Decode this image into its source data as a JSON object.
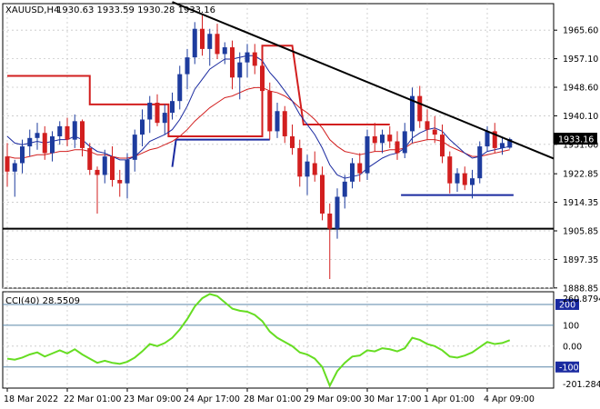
{
  "colors": {
    "background": "#ffffff",
    "grid": "#c8c8c8",
    "axis": "#000000",
    "bull_candle": "#1e3c9e",
    "bear_candle": "#d21f1f",
    "wick": "#000000",
    "ema_fast": "#1a2aa0",
    "ema_slow": "#d21f1f",
    "resistance_trendline": "#000000",
    "support_level": "#000000",
    "stop_line": "#d21f1f",
    "blue_level": "#1a2aa0",
    "cci": "#66dd22",
    "cci_level_band": "#5a86a8",
    "price_tag_bg": "#000000",
    "price_tag_fg": "#ffffff",
    "cci_level_tag_bg": "#1a2aa0"
  },
  "header": {
    "symbol_label": "XAUUSD,H4",
    "ohlc_label": "1930.63 1933.59 1930.28 1933.16"
  },
  "current_price_label": "1933.16",
  "cci": {
    "label": "CCI(40) 28.5509",
    "top_label": "260.8794",
    "bottom_label": "-201.2846",
    "level_labels": [
      "200",
      "100",
      "0.00",
      "-100"
    ]
  },
  "chart_data": [
    {
      "type": "candlestick",
      "title": "XAUUSD,H4",
      "ylim": [
        1888.8,
        1973.5
      ],
      "y_ticks": [
        "1965.60",
        "1957.10",
        "1948.60",
        "1940.10",
        "1931.60",
        "1922.85",
        "1914.35",
        "1905.85",
        "1897.35",
        "1888.85"
      ],
      "x_ticks": [
        "18 Mar 2022",
        "22 Mar 01:00",
        "23 Mar 09:00",
        "24 Apr 17:00",
        "28 Mar 01:00",
        "29 Mar 09:00",
        "30 Mar 17:00",
        "1 Apr 01:00",
        "4 Apr 09:00"
      ],
      "candles": [
        [
          1928.0,
          1932.0,
          1919.0,
          1923.5
        ],
        [
          1923.5,
          1927.0,
          1916.0,
          1926.0
        ],
        [
          1926.0,
          1933.0,
          1923.0,
          1931.0
        ],
        [
          1931.0,
          1936.0,
          1928.0,
          1933.5
        ],
        [
          1933.5,
          1938.0,
          1930.0,
          1935.0
        ],
        [
          1935.0,
          1937.0,
          1927.0,
          1929.0
        ],
        [
          1929.0,
          1935.5,
          1926.5,
          1934.0
        ],
        [
          1934.0,
          1938.5,
          1931.5,
          1937.0
        ],
        [
          1937.0,
          1939.5,
          1931.0,
          1933.0
        ],
        [
          1933.0,
          1940.5,
          1930.5,
          1938.5
        ],
        [
          1938.5,
          1939.0,
          1928.0,
          1930.5
        ],
        [
          1930.5,
          1932.0,
          1922.5,
          1924.0
        ],
        [
          1924.0,
          1925.0,
          1911.0,
          1922.5
        ],
        [
          1922.5,
          1930.0,
          1920.0,
          1928.0
        ],
        [
          1928.0,
          1931.0,
          1919.0,
          1921.0
        ],
        [
          1921.0,
          1924.0,
          1916.0,
          1920.0
        ],
        [
          1920.0,
          1929.0,
          1915.5,
          1927.0
        ],
        [
          1927.0,
          1936.0,
          1923.5,
          1934.5
        ],
        [
          1934.5,
          1942.0,
          1931.0,
          1939.0
        ],
        [
          1939.0,
          1946.0,
          1935.0,
          1944.0
        ],
        [
          1944.0,
          1946.5,
          1937.0,
          1938.0
        ],
        [
          1938.0,
          1943.5,
          1934.5,
          1941.0
        ],
        [
          1941.0,
          1947.0,
          1939.0,
          1944.5
        ],
        [
          1944.5,
          1955.0,
          1942.0,
          1952.5
        ],
        [
          1952.5,
          1960.0,
          1948.0,
          1957.5
        ],
        [
          1957.5,
          1968.0,
          1955.5,
          1966.0
        ],
        [
          1966.0,
          1970.0,
          1958.0,
          1960.0
        ],
        [
          1960.0,
          1966.0,
          1955.0,
          1964.5
        ],
        [
          1964.5,
          1967.5,
          1957.0,
          1958.5
        ],
        [
          1958.5,
          1962.0,
          1955.5,
          1960.5
        ],
        [
          1960.5,
          1962.5,
          1948.0,
          1951.5
        ],
        [
          1951.5,
          1959.0,
          1945.0,
          1956.0
        ],
        [
          1956.0,
          1961.5,
          1951.5,
          1959.0
        ],
        [
          1959.0,
          1961.5,
          1952.5,
          1955.0
        ],
        [
          1955.0,
          1957.0,
          1945.5,
          1947.5
        ],
        [
          1947.5,
          1950.0,
          1933.0,
          1935.5
        ],
        [
          1935.5,
          1944.0,
          1933.5,
          1941.5
        ],
        [
          1941.5,
          1943.0,
          1932.0,
          1934.0
        ],
        [
          1934.0,
          1937.5,
          1928.5,
          1930.5
        ],
        [
          1930.5,
          1933.0,
          1919.0,
          1922.0
        ],
        [
          1922.0,
          1928.5,
          1916.5,
          1926.5
        ],
        [
          1926.0,
          1929.5,
          1920.5,
          1922.5
        ],
        [
          1922.5,
          1925.0,
          1909.0,
          1911.0
        ],
        [
          1911.0,
          1914.0,
          1891.5,
          1906.5
        ],
        [
          1906.5,
          1918.5,
          1903.5,
          1916.0
        ],
        [
          1916.0,
          1922.5,
          1912.5,
          1920.5
        ],
        [
          1920.5,
          1927.5,
          1918.5,
          1926.0
        ],
        [
          1926.0,
          1929.0,
          1920.5,
          1923.0
        ],
        [
          1923.0,
          1936.0,
          1921.0,
          1934.0
        ],
        [
          1934.0,
          1938.0,
          1929.5,
          1932.0
        ],
        [
          1932.0,
          1936.0,
          1929.0,
          1934.5
        ],
        [
          1934.5,
          1937.0,
          1930.5,
          1932.5
        ],
        [
          1932.5,
          1935.5,
          1927.0,
          1929.0
        ],
        [
          1929.0,
          1938.0,
          1927.5,
          1935.5
        ],
        [
          1935.5,
          1948.5,
          1932.0,
          1946.0
        ],
        [
          1946.0,
          1949.0,
          1936.5,
          1938.5
        ],
        [
          1938.5,
          1942.0,
          1933.0,
          1936.0
        ],
        [
          1936.0,
          1940.0,
          1932.0,
          1934.5
        ],
        [
          1934.5,
          1937.5,
          1926.0,
          1928.0
        ],
        [
          1928.0,
          1929.5,
          1917.0,
          1920.0
        ],
        [
          1920.0,
          1924.5,
          1917.5,
          1923.0
        ],
        [
          1923.0,
          1925.0,
          1918.0,
          1919.5
        ],
        [
          1919.5,
          1924.0,
          1915.5,
          1921.5
        ],
        [
          1921.5,
          1932.5,
          1920.0,
          1931.0
        ],
        [
          1931.0,
          1937.0,
          1929.5,
          1935.5
        ],
        [
          1935.5,
          1938.0,
          1929.0,
          1930.5
        ],
        [
          1930.5,
          1933.5,
          1928.5,
          1932.0
        ],
        [
          1930.63,
          1933.59,
          1930.28,
          1933.16
        ]
      ],
      "ema_fast": [
        1934.0,
        1932.0,
        1931.5,
        1932.0,
        1932.5,
        1932.0,
        1932.5,
        1933.0,
        1933.0,
        1934.0,
        1933.0,
        1931.0,
        1929.5,
        1929.0,
        1928.0,
        1927.0,
        1927.0,
        1928.0,
        1930.0,
        1932.5,
        1933.5,
        1934.5,
        1936.0,
        1939.0,
        1943.0,
        1948.0,
        1951.0,
        1954.0,
        1955.5,
        1957.0,
        1957.0,
        1957.5,
        1958.0,
        1958.0,
        1956.5,
        1953.0,
        1950.5,
        1947.5,
        1944.5,
        1940.5,
        1937.5,
        1934.5,
        1930.5,
        1925.5,
        1922.5,
        1921.5,
        1922.0,
        1922.5,
        1924.5,
        1926.0,
        1927.5,
        1928.5,
        1929.0,
        1930.5,
        1933.5,
        1935.0,
        1936.0,
        1936.5,
        1935.5,
        1933.0,
        1931.0,
        1929.0,
        1927.5,
        1928.0,
        1929.5,
        1930.0,
        1930.5,
        1931.0
      ],
      "ema_slow": [
        1928.0,
        1927.5,
        1927.5,
        1928.0,
        1928.5,
        1928.5,
        1929.0,
        1929.5,
        1929.5,
        1930.0,
        1930.0,
        1929.5,
        1928.5,
        1928.5,
        1928.0,
        1927.5,
        1927.5,
        1928.0,
        1929.0,
        1930.0,
        1930.5,
        1931.5,
        1932.5,
        1934.0,
        1936.0,
        1938.5,
        1940.5,
        1942.5,
        1944.0,
        1945.5,
        1946.0,
        1947.0,
        1948.0,
        1948.5,
        1948.5,
        1947.5,
        1947.0,
        1946.0,
        1944.5,
        1942.5,
        1941.0,
        1939.0,
        1936.5,
        1933.0,
        1931.0,
        1929.5,
        1929.0,
        1928.5,
        1929.0,
        1929.5,
        1929.5,
        1930.0,
        1930.0,
        1930.5,
        1932.0,
        1932.5,
        1933.0,
        1933.0,
        1932.5,
        1931.0,
        1930.0,
        1929.0,
        1928.0,
        1928.0,
        1928.5,
        1929.0,
        1929.5,
        1930.0
      ],
      "horizontal_levels": [
        {
          "name": "support",
          "value": 1906.5
        },
        {
          "name": "blue-level-upper",
          "value": 1933.0
        },
        {
          "name": "blue-level-lower",
          "value": 1916.5
        }
      ],
      "trendline": {
        "x1": 22,
        "y1": 1974.0,
        "x2": 70,
        "y2": 1930.0
      }
    },
    {
      "type": "line",
      "title": "CCI(40) 28.5509",
      "ylim": [
        -201.2846,
        260.8794
      ],
      "levels": [
        200,
        100,
        0,
        -100
      ],
      "values": [
        -60,
        -65,
        -55,
        -40,
        -30,
        -50,
        -35,
        -20,
        -35,
        -15,
        -40,
        -60,
        -80,
        -70,
        -80,
        -85,
        -75,
        -55,
        -25,
        10,
        0,
        15,
        40,
        80,
        130,
        190,
        230,
        250,
        240,
        210,
        180,
        170,
        165,
        150,
        120,
        70,
        40,
        20,
        0,
        -30,
        -40,
        -60,
        -100,
        -190,
        -120,
        -80,
        -50,
        -45,
        -20,
        -25,
        -10,
        -15,
        -25,
        -10,
        40,
        30,
        10,
        0,
        -20,
        -50,
        -55,
        -45,
        -30,
        -5,
        20,
        10,
        15,
        28.5509
      ]
    }
  ]
}
